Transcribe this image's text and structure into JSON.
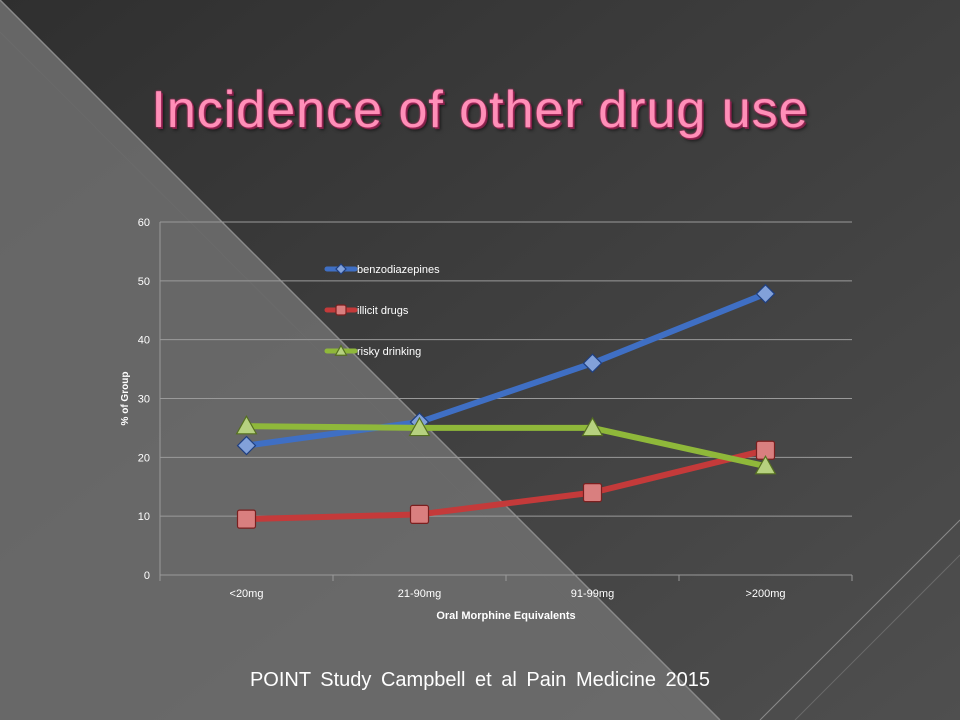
{
  "slide": {
    "title": "Incidence of other drug use",
    "citation": "POINT Study   Campbell  et al  Pain Medicine 2015"
  },
  "colors": {
    "background_dark": "#3d3d3d",
    "background_light": "#777777",
    "title": "#ff8fb8"
  },
  "chart_data": {
    "type": "line",
    "title": "",
    "xlabel": "Oral Morphine Equivalents",
    "ylabel": "% of Group",
    "categories": [
      "<20mg",
      "21-90mg",
      "91-99mg",
      ">200mg"
    ],
    "ylim": [
      0,
      60
    ],
    "yticks": [
      0,
      10,
      20,
      30,
      40,
      50,
      60
    ],
    "grid": true,
    "legend_position": "top-left",
    "series": [
      {
        "name": "benzodiazepines",
        "values": [
          22,
          26,
          36,
          47.8
        ],
        "color": "#3f6fc4",
        "marker": "diamond"
      },
      {
        "name": "illicit drugs",
        "values": [
          9.5,
          10.3,
          14,
          21.2
        ],
        "color": "#c43a3a",
        "marker": "square"
      },
      {
        "name": "risky drinking",
        "values": [
          25.3,
          25,
          25,
          18.5
        ],
        "color": "#8fb83a",
        "marker": "triangle"
      }
    ]
  }
}
